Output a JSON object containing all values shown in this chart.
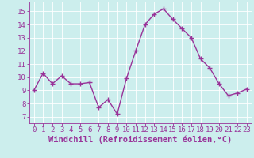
{
  "x": [
    0,
    1,
    2,
    3,
    4,
    5,
    6,
    7,
    8,
    9,
    10,
    11,
    12,
    13,
    14,
    15,
    16,
    17,
    18,
    19,
    20,
    21,
    22,
    23
  ],
  "y": [
    9.0,
    10.3,
    9.5,
    10.1,
    9.5,
    9.5,
    9.6,
    7.7,
    8.3,
    7.2,
    9.9,
    12.0,
    14.0,
    14.8,
    15.2,
    14.4,
    13.7,
    13.0,
    11.4,
    10.7,
    9.5,
    8.6,
    8.8,
    9.1
  ],
  "line_color": "#993399",
  "marker": "+",
  "bg_color": "#cceeed",
  "grid_color": "#ffffff",
  "xlabel": "Windchill (Refroidissement éolien,°C)",
  "xlim": [
    -0.5,
    23.5
  ],
  "ylim": [
    6.5,
    15.75
  ],
  "yticks": [
    7,
    8,
    9,
    10,
    11,
    12,
    13,
    14,
    15
  ],
  "xticks": [
    0,
    1,
    2,
    3,
    4,
    5,
    6,
    7,
    8,
    9,
    10,
    11,
    12,
    13,
    14,
    15,
    16,
    17,
    18,
    19,
    20,
    21,
    22,
    23
  ],
  "tick_label_fontsize": 6.5,
  "xlabel_fontsize": 7.5,
  "line_width": 1.0,
  "marker_size": 4
}
